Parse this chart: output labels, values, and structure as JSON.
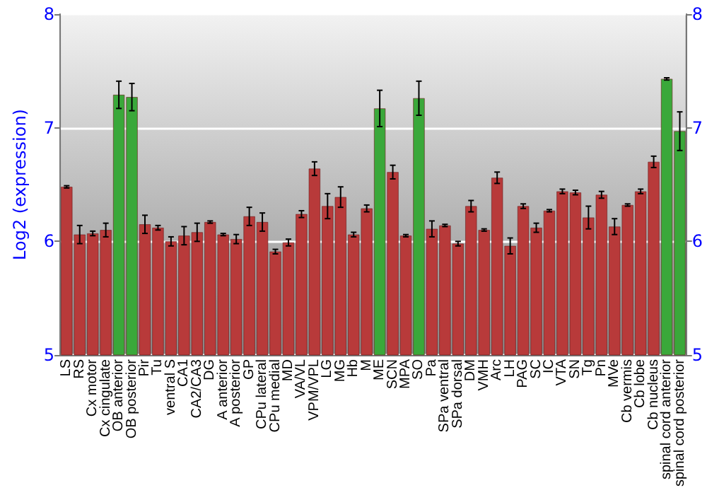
{
  "chart_data": {
    "type": "bar",
    "ylabel": "Log2 (expression)",
    "categories": [
      "LS",
      "RS",
      "Cx motor",
      "Cx cingulate",
      "OB anterior",
      "OB posterior",
      "Pir",
      "Tu",
      "ventral S",
      "CA1",
      "CA2/CA3",
      "DG",
      "A anterior",
      "A posterior",
      "GP",
      "CPu lateral",
      "CPu medial",
      "MD",
      "VA/VL",
      "VPM/VPL",
      "LG",
      "MG",
      "Hb",
      "M",
      "ME",
      "SCN",
      "MPA",
      "SO",
      "Pa",
      "SPa ventral",
      "SPa dorsal",
      "DM",
      "VMH",
      "Arc",
      "LH",
      "PAG",
      "SC",
      "IC",
      "VTA",
      "SN",
      "Tg",
      "Pn",
      "MVe",
      "Cb vermis",
      "Cb lobe",
      "Cb nucleus",
      "spinal cord anterior",
      "spinal cord posterior"
    ],
    "values": [
      6.48,
      6.06,
      6.07,
      6.1,
      7.29,
      7.27,
      6.15,
      6.12,
      6.0,
      6.05,
      6.08,
      6.17,
      6.06,
      6.02,
      6.22,
      6.17,
      5.91,
      5.99,
      6.24,
      6.64,
      6.31,
      6.39,
      6.06,
      6.29,
      7.17,
      6.61,
      6.05,
      7.26,
      6.11,
      6.14,
      5.98,
      6.31,
      6.1,
      6.56,
      5.96,
      6.31,
      6.12,
      6.27,
      6.44,
      6.43,
      6.21,
      6.41,
      6.13,
      6.32,
      6.44,
      6.7,
      7.43,
      6.97
    ],
    "errors": [
      0.01,
      0.08,
      0.02,
      0.06,
      0.12,
      0.12,
      0.08,
      0.02,
      0.04,
      0.08,
      0.08,
      0.01,
      0.01,
      0.04,
      0.08,
      0.08,
      0.02,
      0.03,
      0.03,
      0.06,
      0.11,
      0.09,
      0.02,
      0.03,
      0.16,
      0.06,
      0.01,
      0.15,
      0.07,
      0.01,
      0.02,
      0.05,
      0.01,
      0.05,
      0.07,
      0.02,
      0.04,
      0.01,
      0.02,
      0.02,
      0.1,
      0.03,
      0.07,
      0.01,
      0.02,
      0.05,
      0.01,
      0.17
    ],
    "colors": [
      "#b83a3a",
      "#b83a3a",
      "#b83a3a",
      "#b83a3a",
      "#3aa83a",
      "#3aa83a",
      "#b83a3a",
      "#b83a3a",
      "#b83a3a",
      "#b83a3a",
      "#b83a3a",
      "#b83a3a",
      "#b83a3a",
      "#b83a3a",
      "#b83a3a",
      "#b83a3a",
      "#b83a3a",
      "#b83a3a",
      "#b83a3a",
      "#b83a3a",
      "#b83a3a",
      "#b83a3a",
      "#b83a3a",
      "#b83a3a",
      "#3aa83a",
      "#b83a3a",
      "#b83a3a",
      "#3aa83a",
      "#b83a3a",
      "#b83a3a",
      "#b83a3a",
      "#b83a3a",
      "#b83a3a",
      "#b83a3a",
      "#b83a3a",
      "#b83a3a",
      "#b83a3a",
      "#b83a3a",
      "#b83a3a",
      "#b83a3a",
      "#b83a3a",
      "#b83a3a",
      "#b83a3a",
      "#b83a3a",
      "#b83a3a",
      "#b83a3a",
      "#3aa83a",
      "#3aa83a"
    ],
    "ylim": [
      5,
      8
    ],
    "yticks": [
      5,
      6,
      7,
      8
    ],
    "y2lim": [
      5,
      8
    ],
    "y2ticks": [
      5,
      6,
      7,
      8
    ],
    "grid": "y"
  }
}
